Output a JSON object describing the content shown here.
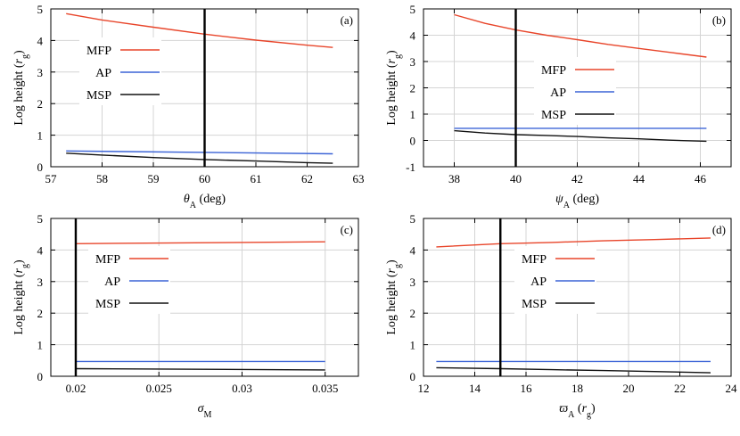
{
  "colors": {
    "MFP": "#e8452a",
    "AP": "#3b63d6",
    "MSP": "#111111",
    "grid": "#d4d4d4",
    "marker": "#000000"
  },
  "chart_data": [
    {
      "type": "line",
      "panel_label": "(a)",
      "ylabel": "Log height (r_g)",
      "xlabel": "θA (deg)",
      "xlim": [
        57,
        63
      ],
      "ylim": [
        0,
        5
      ],
      "xticks": [
        57,
        58,
        59,
        60,
        61,
        62,
        63
      ],
      "xtick_labels": [
        "57",
        "58",
        "59",
        "60",
        "61",
        "62",
        "63"
      ],
      "yticks": [
        0,
        1,
        2,
        3,
        4,
        5
      ],
      "ytick_labels": [
        "0",
        "1",
        "2",
        "3",
        "4",
        "5"
      ],
      "vline": 60,
      "legend": [
        "MFP",
        "AP",
        "MSP"
      ],
      "series": [
        {
          "name": "MFP",
          "x": [
            57.3,
            58,
            59,
            60,
            61,
            62,
            62.5
          ],
          "y": [
            4.85,
            4.65,
            4.42,
            4.2,
            4.01,
            3.85,
            3.78
          ]
        },
        {
          "name": "AP",
          "x": [
            57.3,
            62.5
          ],
          "y": [
            0.5,
            0.41
          ]
        },
        {
          "name": "MSP",
          "x": [
            57.3,
            58,
            59,
            60,
            61,
            62,
            62.5
          ],
          "y": [
            0.43,
            0.37,
            0.29,
            0.23,
            0.18,
            0.13,
            0.11
          ]
        }
      ]
    },
    {
      "type": "line",
      "panel_label": "(b)",
      "ylabel": "Log height (r_g)",
      "xlabel": "ψA (deg)",
      "xlim": [
        37,
        47
      ],
      "ylim": [
        -1,
        5
      ],
      "xticks": [
        38,
        40,
        42,
        44,
        46
      ],
      "xtick_labels": [
        "38",
        "40",
        "42",
        "44",
        "46"
      ],
      "yticks": [
        -1,
        0,
        1,
        2,
        3,
        4,
        5
      ],
      "ytick_labels": [
        "-1",
        "0",
        "1",
        "2",
        "3",
        "4",
        "5"
      ],
      "vline": 40,
      "legend": [
        "MFP",
        "AP",
        "MSP"
      ],
      "series": [
        {
          "name": "MFP",
          "x": [
            38,
            39,
            40,
            41,
            42,
            43,
            44,
            45,
            46.2
          ],
          "y": [
            4.78,
            4.45,
            4.2,
            4.0,
            3.83,
            3.65,
            3.5,
            3.35,
            3.17
          ]
        },
        {
          "name": "AP",
          "x": [
            38,
            46.2
          ],
          "y": [
            0.46,
            0.46
          ]
        },
        {
          "name": "MSP",
          "x": [
            38,
            39,
            40,
            41,
            42,
            43,
            44,
            45,
            46.2
          ],
          "y": [
            0.37,
            0.28,
            0.22,
            0.19,
            0.15,
            0.1,
            0.06,
            0.01,
            -0.03
          ]
        }
      ]
    },
    {
      "type": "line",
      "panel_label": "(c)",
      "ylabel": "Log height (r_g)",
      "xlabel": "σM",
      "xlim": [
        0.0185,
        0.037
      ],
      "ylim": [
        0,
        5
      ],
      "xticks": [
        0.02,
        0.025,
        0.03,
        0.035
      ],
      "xtick_labels": [
        "0.02",
        "0.025",
        "0.03",
        "0.035"
      ],
      "yticks": [
        0,
        1,
        2,
        3,
        4,
        5
      ],
      "ytick_labels": [
        "0",
        "1",
        "2",
        "3",
        "4",
        "5"
      ],
      "vline": 0.02,
      "legend": [
        "MFP",
        "AP",
        "MSP"
      ],
      "series": [
        {
          "name": "MFP",
          "x": [
            0.02,
            0.035
          ],
          "y": [
            4.2,
            4.26
          ]
        },
        {
          "name": "AP",
          "x": [
            0.02,
            0.035
          ],
          "y": [
            0.47,
            0.47
          ]
        },
        {
          "name": "MSP",
          "x": [
            0.02,
            0.035
          ],
          "y": [
            0.24,
            0.2
          ]
        }
      ]
    },
    {
      "type": "line",
      "panel_label": "(d)",
      "ylabel": "Log height (r_g)",
      "xlabel": "ϖA (r_g)",
      "xlim": [
        12,
        24
      ],
      "ylim": [
        0,
        5
      ],
      "xticks": [
        12,
        14,
        16,
        18,
        20,
        22,
        24
      ],
      "xtick_labels": [
        "12",
        "14",
        "16",
        "18",
        "20",
        "22",
        "24"
      ],
      "yticks": [
        0,
        1,
        2,
        3,
        4,
        5
      ],
      "ytick_labels": [
        "0",
        "1",
        "2",
        "3",
        "4",
        "5"
      ],
      "vline": 15,
      "legend": [
        "MFP",
        "AP",
        "MSP"
      ],
      "series": [
        {
          "name": "MFP",
          "x": [
            12.5,
            15,
            17,
            19,
            21,
            23.2
          ],
          "y": [
            4.1,
            4.2,
            4.24,
            4.29,
            4.33,
            4.38
          ]
        },
        {
          "name": "AP",
          "x": [
            12.5,
            23.2
          ],
          "y": [
            0.47,
            0.47
          ]
        },
        {
          "name": "MSP",
          "x": [
            12.5,
            15,
            17,
            19,
            21,
            23.2
          ],
          "y": [
            0.27,
            0.24,
            0.21,
            0.18,
            0.15,
            0.11
          ]
        }
      ]
    }
  ]
}
